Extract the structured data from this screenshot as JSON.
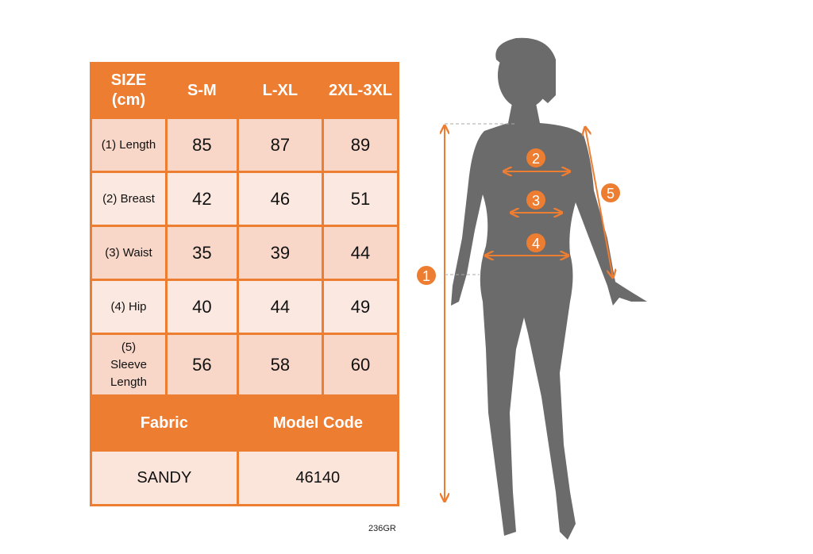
{
  "table": {
    "header": [
      "SIZE (cm)",
      "S-M",
      "L-XL",
      "2XL-3XL"
    ],
    "rows": [
      {
        "label": "(1) Length",
        "values": [
          "85",
          "87",
          "89"
        ]
      },
      {
        "label": "(2) Breast",
        "values": [
          "42",
          "46",
          "51"
        ]
      },
      {
        "label": "(3) Waist",
        "values": [
          "35",
          "39",
          "44"
        ]
      },
      {
        "label": "(4) Hip",
        "values": [
          "40",
          "44",
          "49"
        ]
      },
      {
        "label": "(5) Sleeve Length",
        "values": [
          "56",
          "58",
          "60"
        ]
      }
    ],
    "fabric_label": "Fabric",
    "model_code_label": "Model Code",
    "fabric_value": "SANDY",
    "model_code_value": "46140"
  },
  "code_note": "236GR",
  "figure_markers": [
    "1",
    "2",
    "3",
    "4",
    "5"
  ],
  "colors": {
    "accent": "#ED7D31",
    "silhouette": "#6B6B6B",
    "cell_light": "#F8D7C9",
    "cell_lighter": "#FBE9E1"
  }
}
